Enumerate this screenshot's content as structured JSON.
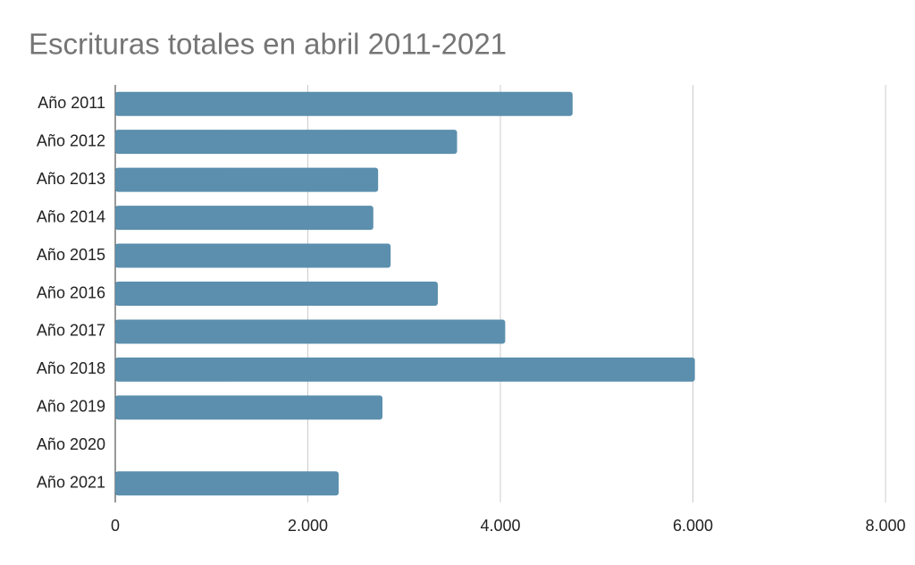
{
  "chart_data": {
    "type": "bar",
    "orientation": "horizontal",
    "title": "Escrituras totales en abril 2011-2021",
    "categories": [
      "Año 2011",
      "Año 2012",
      "Año 2013",
      "Año 2014",
      "Año 2015",
      "Año 2016",
      "Año 2017",
      "Año 2018",
      "Año 2019",
      "Año 2020",
      "Año 2021"
    ],
    "values": [
      4750,
      3550,
      2730,
      2680,
      2860,
      3350,
      4050,
      6020,
      2775,
      null,
      2320
    ],
    "color": "#5b8fad",
    "xlim": [
      0,
      8000
    ],
    "xticks": [
      0,
      {
        "value": 2000,
        "label": "2.000"
      },
      {
        "value": 4000,
        "label": "4.000"
      },
      {
        "value": 6000,
        "label": "6.000"
      },
      {
        "value": 8000,
        "label": "8.000"
      }
    ],
    "grid": true
  }
}
